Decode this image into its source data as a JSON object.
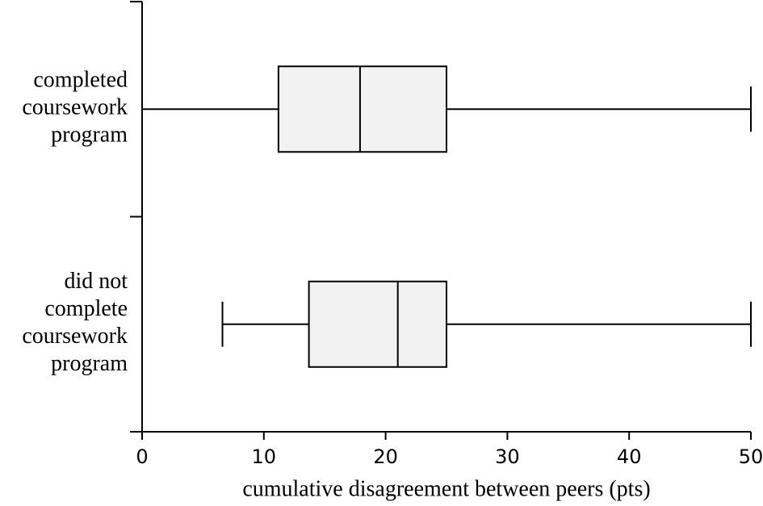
{
  "chart_data": {
    "type": "box",
    "orientation": "horizontal",
    "xlabel": "cumulative disagreement between peers (pts)",
    "categories": [
      [
        "completed",
        "coursework",
        "program"
      ],
      [
        "did not",
        "complete",
        "coursework",
        "program"
      ]
    ],
    "boxes": [
      {
        "min": 0,
        "q1": 11.2,
        "median": 17.9,
        "q3": 25.0,
        "max": 50
      },
      {
        "min": 6.6,
        "q1": 13.7,
        "median": 21.0,
        "q3": 25.0,
        "max": 50
      }
    ],
    "color": "#f2f2f2",
    "xlim": [
      0,
      50
    ],
    "xticks": [
      0,
      10,
      20,
      30,
      40,
      50
    ]
  }
}
